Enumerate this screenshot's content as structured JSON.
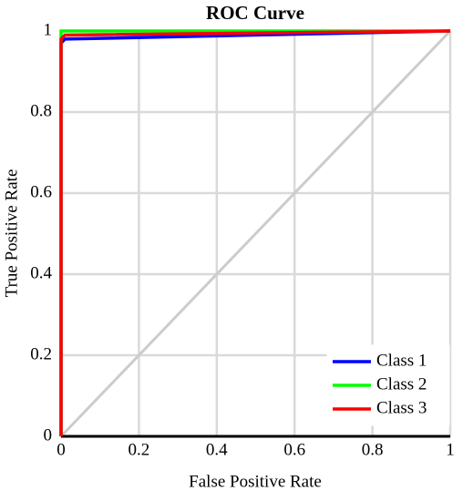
{
  "chart_data": {
    "type": "line",
    "title": "ROC Curve",
    "x_label": "False Positive Rate",
    "y_label": "True Positive Rate",
    "xlim": [
      0,
      1
    ],
    "ylim": [
      0,
      1
    ],
    "xticks": [
      0,
      0.2,
      0.4,
      0.6,
      0.8,
      1
    ],
    "yticks": [
      0,
      0.2,
      0.4,
      0.6,
      0.8,
      1
    ],
    "grid": true,
    "legend": "lower right",
    "series": [
      {
        "name": "Class 1",
        "color": "#0000ff",
        "x": [
          0,
          0,
          0.01,
          1
        ],
        "values": [
          0,
          0.97,
          0.98,
          1
        ]
      },
      {
        "name": "Class 2",
        "color": "#00ff00",
        "x": [
          0,
          0,
          1
        ],
        "values": [
          0,
          1,
          1
        ]
      },
      {
        "name": "Class 3",
        "color": "#ff0000",
        "x": [
          0,
          0,
          0.01,
          1
        ],
        "values": [
          0,
          0.98,
          0.99,
          1
        ]
      }
    ]
  }
}
